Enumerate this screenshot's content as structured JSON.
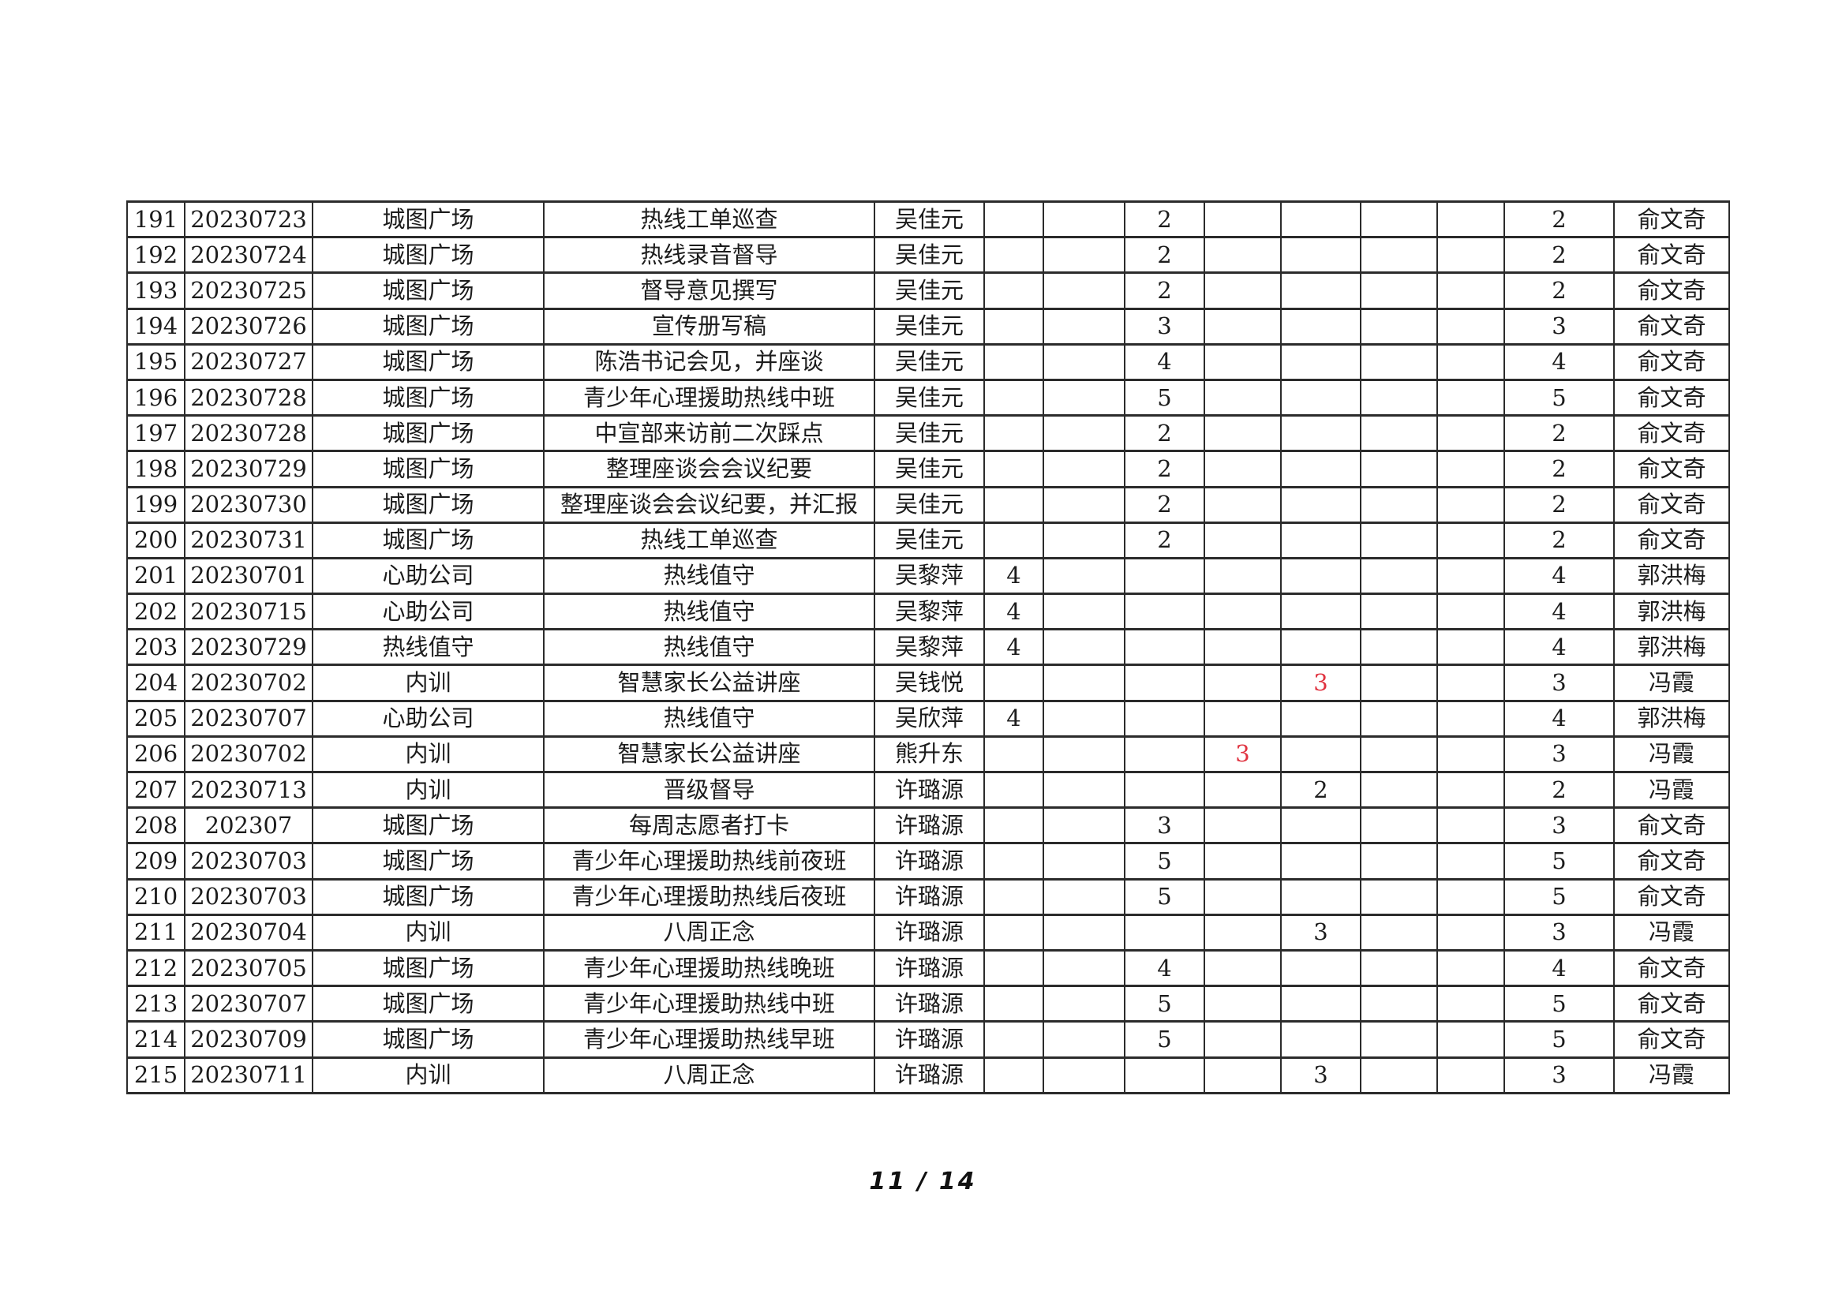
{
  "footer": {
    "page_indicator": "11 / 14"
  },
  "colors": {
    "text": "#1c1c1c",
    "border": "#2b2b2b",
    "highlight_red": "#e03340",
    "page_background": "#ffffff"
  },
  "table": {
    "column_keys": [
      "no",
      "date",
      "org",
      "activity",
      "person",
      "c1",
      "c2",
      "c3",
      "c4",
      "c5",
      "c6",
      "c7",
      "total",
      "manager"
    ],
    "rows": [
      {
        "no": "191",
        "date": "20230723",
        "org": "城图广场",
        "activity": "热线工单巡查",
        "person": "吴佳元",
        "c1": "",
        "c2": "",
        "c3": "2",
        "c4": "",
        "c5": "",
        "c6": "",
        "c7": "",
        "total": "2",
        "manager": "俞文奇"
      },
      {
        "no": "192",
        "date": "20230724",
        "org": "城图广场",
        "activity": "热线录音督导",
        "person": "吴佳元",
        "c1": "",
        "c2": "",
        "c3": "2",
        "c4": "",
        "c5": "",
        "c6": "",
        "c7": "",
        "total": "2",
        "manager": "俞文奇"
      },
      {
        "no": "193",
        "date": "20230725",
        "org": "城图广场",
        "activity": "督导意见撰写",
        "person": "吴佳元",
        "c1": "",
        "c2": "",
        "c3": "2",
        "c4": "",
        "c5": "",
        "c6": "",
        "c7": "",
        "total": "2",
        "manager": "俞文奇"
      },
      {
        "no": "194",
        "date": "20230726",
        "org": "城图广场",
        "activity": "宣传册写稿",
        "person": "吴佳元",
        "c1": "",
        "c2": "",
        "c3": "3",
        "c4": "",
        "c5": "",
        "c6": "",
        "c7": "",
        "total": "3",
        "manager": "俞文奇"
      },
      {
        "no": "195",
        "date": "20230727",
        "org": "城图广场",
        "activity": "陈浩书记会见，并座谈",
        "person": "吴佳元",
        "c1": "",
        "c2": "",
        "c3": "4",
        "c4": "",
        "c5": "",
        "c6": "",
        "c7": "",
        "total": "4",
        "manager": "俞文奇"
      },
      {
        "no": "196",
        "date": "20230728",
        "org": "城图广场",
        "activity": "青少年心理援助热线中班",
        "person": "吴佳元",
        "c1": "",
        "c2": "",
        "c3": "5",
        "c4": "",
        "c5": "",
        "c6": "",
        "c7": "",
        "total": "5",
        "manager": "俞文奇"
      },
      {
        "no": "197",
        "date": "20230728",
        "org": "城图广场",
        "activity": "中宣部来访前二次踩点",
        "person": "吴佳元",
        "c1": "",
        "c2": "",
        "c3": "2",
        "c4": "",
        "c5": "",
        "c6": "",
        "c7": "",
        "total": "2",
        "manager": "俞文奇"
      },
      {
        "no": "198",
        "date": "20230729",
        "org": "城图广场",
        "activity": "整理座谈会会议纪要",
        "person": "吴佳元",
        "c1": "",
        "c2": "",
        "c3": "2",
        "c4": "",
        "c5": "",
        "c6": "",
        "c7": "",
        "total": "2",
        "manager": "俞文奇"
      },
      {
        "no": "199",
        "date": "20230730",
        "org": "城图广场",
        "activity": "整理座谈会会议纪要，并汇报",
        "person": "吴佳元",
        "c1": "",
        "c2": "",
        "c3": "2",
        "c4": "",
        "c5": "",
        "c6": "",
        "c7": "",
        "total": "2",
        "manager": "俞文奇"
      },
      {
        "no": "200",
        "date": "20230731",
        "org": "城图广场",
        "activity": "热线工单巡查",
        "person": "吴佳元",
        "c1": "",
        "c2": "",
        "c3": "2",
        "c4": "",
        "c5": "",
        "c6": "",
        "c7": "",
        "total": "2",
        "manager": "俞文奇"
      },
      {
        "no": "201",
        "date": "20230701",
        "org": "心助公司",
        "activity": "热线值守",
        "person": "吴黎萍",
        "c1": "4",
        "c2": "",
        "c3": "",
        "c4": "",
        "c5": "",
        "c6": "",
        "c7": "",
        "total": "4",
        "manager": "郭洪梅"
      },
      {
        "no": "202",
        "date": "20230715",
        "org": "心助公司",
        "activity": "热线值守",
        "person": "吴黎萍",
        "c1": "4",
        "c2": "",
        "c3": "",
        "c4": "",
        "c5": "",
        "c6": "",
        "c7": "",
        "total": "4",
        "manager": "郭洪梅"
      },
      {
        "no": "203",
        "date": "20230729",
        "org": "热线值守",
        "activity": "热线值守",
        "person": "吴黎萍",
        "c1": "4",
        "c2": "",
        "c3": "",
        "c4": "",
        "c5": "",
        "c6": "",
        "c7": "",
        "total": "4",
        "manager": "郭洪梅"
      },
      {
        "no": "204",
        "date": "20230702",
        "org": "内训",
        "activity": "智慧家长公益讲座",
        "person": "吴钱悦",
        "c1": "",
        "c2": "",
        "c3": "",
        "c4": "",
        "c5": "3",
        "c6": "",
        "c7": "",
        "total": "3",
        "manager": "冯霞",
        "red_col": "c5"
      },
      {
        "no": "205",
        "date": "20230707",
        "org": "心助公司",
        "activity": "热线值守",
        "person": "吴欣萍",
        "c1": "4",
        "c2": "",
        "c3": "",
        "c4": "",
        "c5": "",
        "c6": "",
        "c7": "",
        "total": "4",
        "manager": "郭洪梅"
      },
      {
        "no": "206",
        "date": "20230702",
        "org": "内训",
        "activity": "智慧家长公益讲座",
        "person": "熊升东",
        "c1": "",
        "c2": "",
        "c3": "",
        "c4": "3",
        "c5": "",
        "c6": "",
        "c7": "",
        "total": "3",
        "manager": "冯霞",
        "red_col": "c4"
      },
      {
        "no": "207",
        "date": "20230713",
        "org": "内训",
        "activity": "晋级督导",
        "person": "许璐源",
        "c1": "",
        "c2": "",
        "c3": "",
        "c4": "",
        "c5": "2",
        "c6": "",
        "c7": "",
        "total": "2",
        "manager": "冯霞"
      },
      {
        "no": "208",
        "date": "202307",
        "org": "城图广场",
        "activity": "每周志愿者打卡",
        "person": "许璐源",
        "c1": "",
        "c2": "",
        "c3": "3",
        "c4": "",
        "c5": "",
        "c6": "",
        "c7": "",
        "total": "3",
        "manager": "俞文奇"
      },
      {
        "no": "209",
        "date": "20230703",
        "org": "城图广场",
        "activity": "青少年心理援助热线前夜班",
        "person": "许璐源",
        "c1": "",
        "c2": "",
        "c3": "5",
        "c4": "",
        "c5": "",
        "c6": "",
        "c7": "",
        "total": "5",
        "manager": "俞文奇"
      },
      {
        "no": "210",
        "date": "20230703",
        "org": "城图广场",
        "activity": "青少年心理援助热线后夜班",
        "person": "许璐源",
        "c1": "",
        "c2": "",
        "c3": "5",
        "c4": "",
        "c5": "",
        "c6": "",
        "c7": "",
        "total": "5",
        "manager": "俞文奇"
      },
      {
        "no": "211",
        "date": "20230704",
        "org": "内训",
        "activity": "八周正念",
        "person": "许璐源",
        "c1": "",
        "c2": "",
        "c3": "",
        "c4": "",
        "c5": "3",
        "c6": "",
        "c7": "",
        "total": "3",
        "manager": "冯霞"
      },
      {
        "no": "212",
        "date": "20230705",
        "org": "城图广场",
        "activity": "青少年心理援助热线晚班",
        "person": "许璐源",
        "c1": "",
        "c2": "",
        "c3": "4",
        "c4": "",
        "c5": "",
        "c6": "",
        "c7": "",
        "total": "4",
        "manager": "俞文奇"
      },
      {
        "no": "213",
        "date": "20230707",
        "org": "城图广场",
        "activity": "青少年心理援助热线中班",
        "person": "许璐源",
        "c1": "",
        "c2": "",
        "c3": "5",
        "c4": "",
        "c5": "",
        "c6": "",
        "c7": "",
        "total": "5",
        "manager": "俞文奇"
      },
      {
        "no": "214",
        "date": "20230709",
        "org": "城图广场",
        "activity": "青少年心理援助热线早班",
        "person": "许璐源",
        "c1": "",
        "c2": "",
        "c3": "5",
        "c4": "",
        "c5": "",
        "c6": "",
        "c7": "",
        "total": "5",
        "manager": "俞文奇"
      },
      {
        "no": "215",
        "date": "20230711",
        "org": "内训",
        "activity": "八周正念",
        "person": "许璐源",
        "c1": "",
        "c2": "",
        "c3": "",
        "c4": "",
        "c5": "3",
        "c6": "",
        "c7": "",
        "total": "3",
        "manager": "冯霞"
      }
    ]
  }
}
